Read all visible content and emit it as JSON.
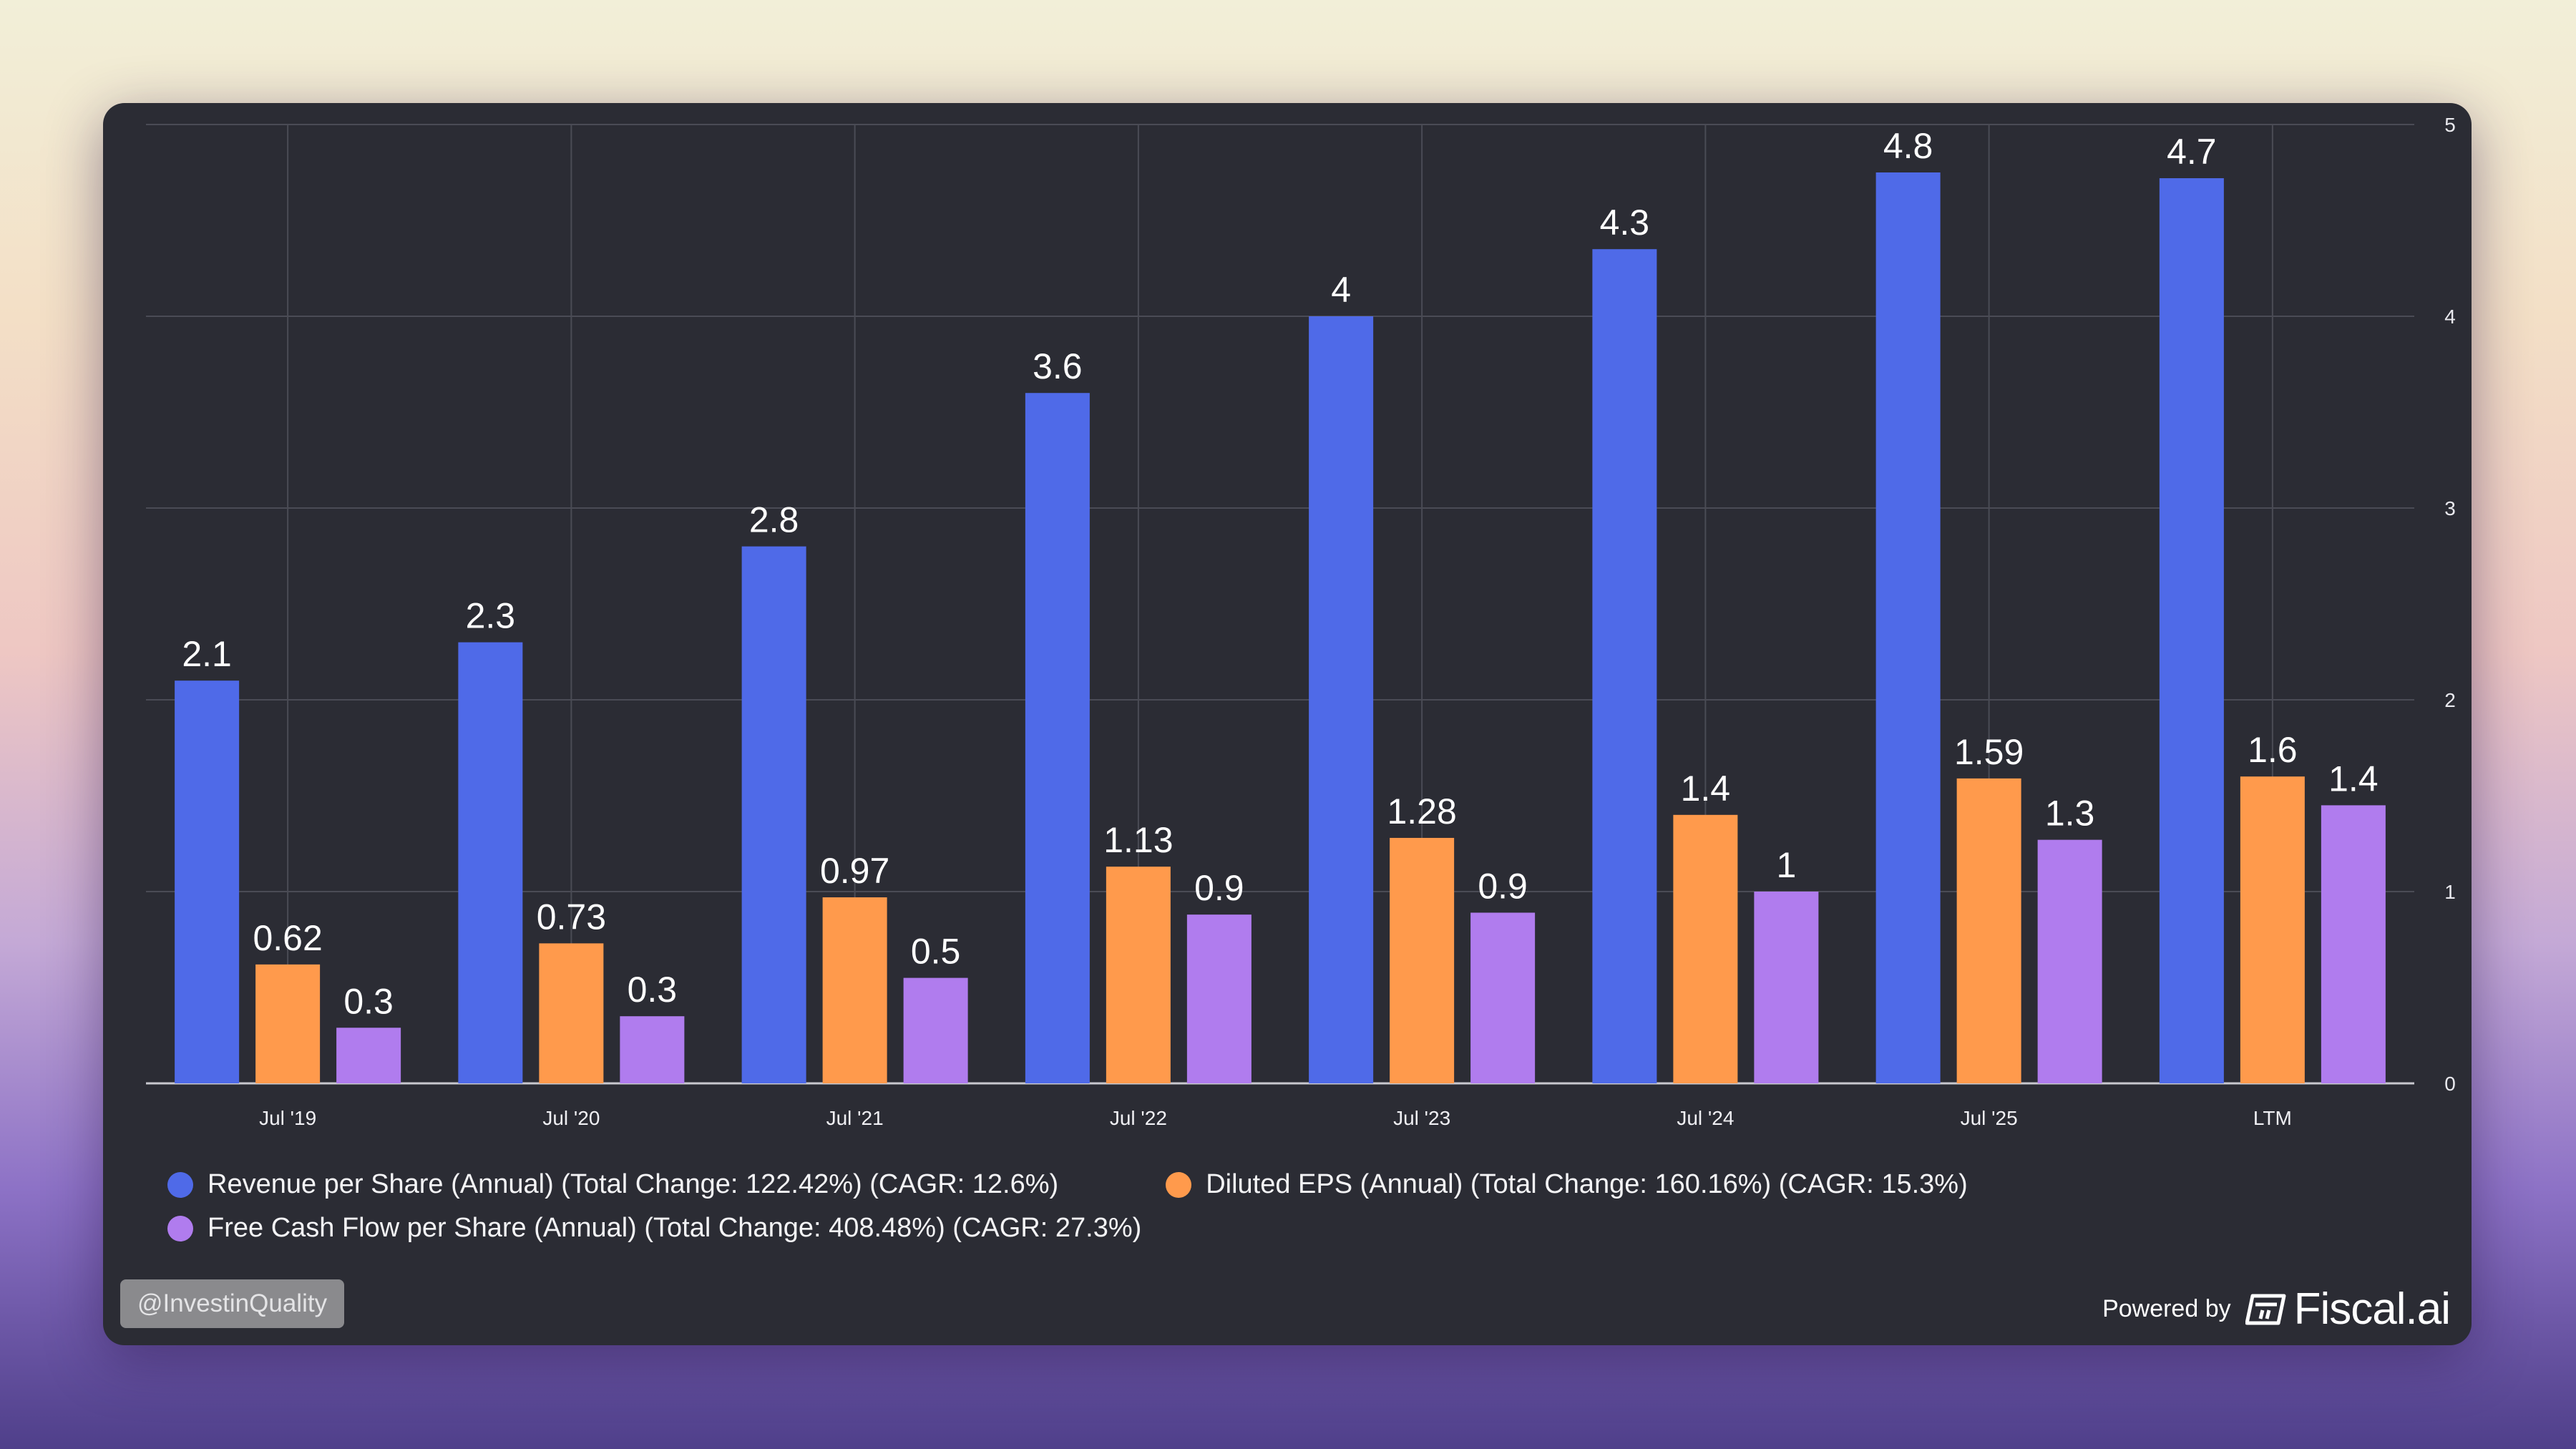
{
  "chart_data": {
    "type": "bar",
    "categories": [
      "Jul '19",
      "Jul '20",
      "Jul '21",
      "Jul '22",
      "Jul '23",
      "Jul '24",
      "Jul '25",
      "LTM"
    ],
    "series": [
      {
        "name": "Revenue per Share (Annual) (Total Change: 122.42%) (CAGR: 12.6%)",
        "color": "#4f6ae8",
        "values": [
          2.1,
          2.3,
          2.8,
          3.6,
          4.0,
          4.35,
          4.75,
          4.72
        ],
        "labels": [
          "2.1",
          "2.3",
          "2.8",
          "3.6",
          "4",
          "4.3",
          "4.8",
          "4.7"
        ]
      },
      {
        "name": "Diluted EPS (Annual) (Total Change: 160.16%) (CAGR: 15.3%)",
        "color": "#ff9a4c",
        "values": [
          0.62,
          0.73,
          0.97,
          1.13,
          1.28,
          1.4,
          1.59,
          1.6
        ],
        "labels": [
          "0.62",
          "0.73",
          "0.97",
          "1.13",
          "1.28",
          "1.4",
          "1.59",
          "1.6"
        ]
      },
      {
        "name": "Free Cash Flow per Share (Annual) (Total Change: 408.48%) (CAGR: 27.3%)",
        "color": "#b07cee",
        "values": [
          0.29,
          0.35,
          0.55,
          0.88,
          0.89,
          1.0,
          1.27,
          1.45
        ],
        "labels": [
          "0.3",
          "0.3",
          "0.5",
          "0.9",
          "0.9",
          "1",
          "1.3",
          "1.4"
        ]
      }
    ],
    "ylim": [
      0,
      5
    ],
    "yticks": [
      "0",
      "1",
      "2",
      "3",
      "4",
      "5"
    ],
    "grid": true,
    "y_axis_side": "right",
    "legend_position": "bottom-left"
  },
  "footer": {
    "handle": "@InvestinQuality",
    "powered_by": "Powered by",
    "brand": "Fiscal.ai"
  },
  "icons": {
    "brand_logo": "fiscal-logo-icon"
  }
}
